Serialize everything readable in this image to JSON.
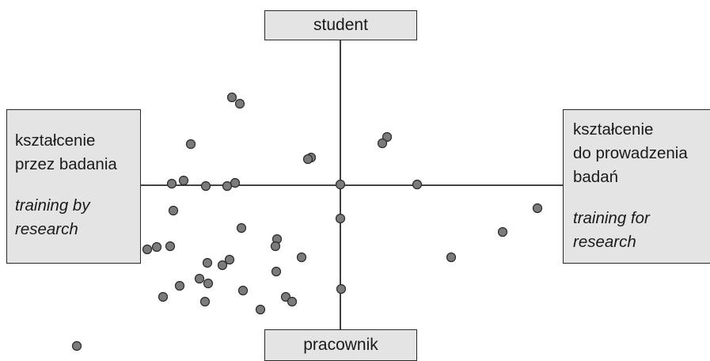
{
  "labels": {
    "top": "student",
    "bottom": "pracownik",
    "left_line1": "kształcenie",
    "left_line2": "przez badania",
    "left_en_line1": "training by",
    "left_en_line2": "research",
    "right_line1": "kształcenie",
    "right_line2": "do prowadzenia",
    "right_line3": "badań",
    "right_en_line1": "training for",
    "right_en_line2": "research"
  },
  "colors": {
    "dot_fill": "#7b7b7b",
    "dot_stroke": "#2a2a2a",
    "axis": "#2a2a2a",
    "box_fill": "#e4e4e4"
  }
}
